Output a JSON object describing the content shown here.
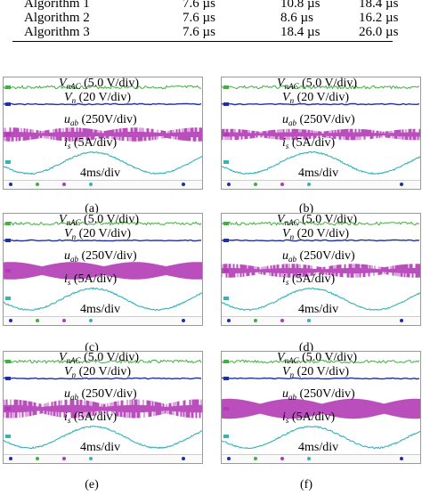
{
  "table": {
    "rows": [
      [
        "Algorithm 1",
        "7.6 µs",
        "10.8 µs",
        "18.4 µs"
      ],
      [
        "Algorithm 2",
        "7.6 µs",
        "8.6 µs",
        "16.2 µs"
      ],
      [
        "Algorithm 3",
        "7.6 µs",
        "18.4 µs",
        "26.0 µs"
      ]
    ]
  },
  "labels": {
    "v": "V",
    "nac_sub": "nAC",
    "vnac_scale": " (5.0 V/div)",
    "n_sub": "n",
    "vn_scale": " (20 V/div)",
    "u": "u",
    "ab_sub": "ab",
    "uab_scale": " (250V/div)",
    "i": "i",
    "s_sub": "s",
    "is_scale": " (5A/div)",
    "time_scale": "4ms/div"
  },
  "panels": [
    {
      "caption": "(a)",
      "uab_style": "sparse",
      "uab_amp": 0.55,
      "is_amp": 1.0,
      "is_phase": 0.0
    },
    {
      "caption": "(b)",
      "uab_style": "sparse",
      "uab_amp": 0.45,
      "is_amp": 1.0,
      "is_phase": 0.0
    },
    {
      "caption": "(c)",
      "uab_style": "dense",
      "uab_amp": 0.7,
      "is_amp": 1.0,
      "is_phase": 0.0
    },
    {
      "caption": "(d)",
      "uab_style": "sparse",
      "uab_amp": 0.55,
      "is_amp": 1.0,
      "is_phase": 0.0
    },
    {
      "caption": "(e)",
      "uab_style": "sparse",
      "uab_amp": 0.75,
      "is_amp": 1.0,
      "is_phase": 0.0
    },
    {
      "caption": "(f)",
      "uab_style": "dense",
      "uab_amp": 0.8,
      "is_amp": 1.0,
      "is_phase": 0.0
    }
  ],
  "colors": {
    "vnac": "#3fb13f",
    "vn": "#1f2fa8",
    "uab": "#b23bb5",
    "is": "#35b3b8",
    "frame": "#9a9a9a"
  }
}
